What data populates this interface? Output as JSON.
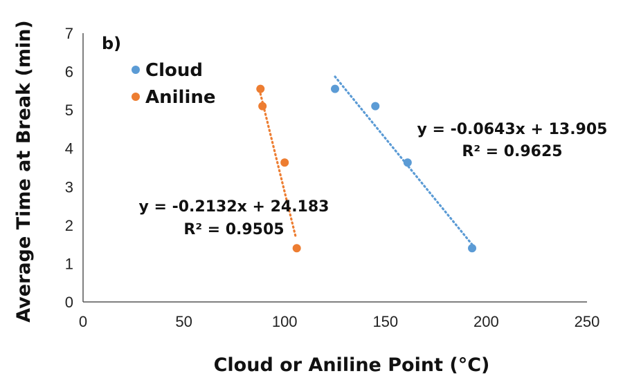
{
  "chart_data": {
    "type": "scatter",
    "panel_label": "b)",
    "xlabel": "Cloud or Aniline Point (°C)",
    "ylabel": "Average Time at Break (min)",
    "xlim": [
      0,
      250
    ],
    "ylim": [
      0,
      7
    ],
    "x_ticks": [
      0,
      50,
      100,
      150,
      200,
      250
    ],
    "y_ticks": [
      0,
      1,
      2,
      3,
      4,
      5,
      6,
      7
    ],
    "grid": false,
    "legend_position": "top-left",
    "series": [
      {
        "name": "Cloud",
        "color": "#5b9bd5",
        "points": [
          [
            125,
            5.55
          ],
          [
            145,
            5.1
          ],
          [
            161,
            3.63
          ],
          [
            193,
            1.4
          ]
        ],
        "trendline": {
          "slope": -0.0643,
          "intercept": 13.905,
          "x_range": [
            125,
            193
          ],
          "equation": "y = -0.0643x + 13.905",
          "r2": "R² = 0.9625"
        }
      },
      {
        "name": "Aniline",
        "color": "#ed7d31",
        "points": [
          [
            88,
            5.55
          ],
          [
            89,
            5.1
          ],
          [
            100,
            3.63
          ],
          [
            106,
            1.4
          ]
        ],
        "trendline": {
          "slope": -0.2132,
          "intercept": 24.183,
          "x_range": [
            87.5,
            105.5
          ],
          "equation": "y = -0.2132x + 24.183",
          "r2": "R² = 0.9505"
        }
      }
    ]
  }
}
